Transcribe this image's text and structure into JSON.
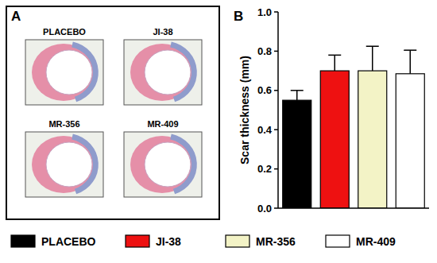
{
  "panel_a": {
    "label": "A",
    "images": [
      "PLACEBO",
      "JI-38",
      "MR-356",
      "MR-409"
    ]
  },
  "panel_b": {
    "label": "B"
  },
  "chart_data": {
    "type": "bar",
    "y_label": "Scar thickness (mm)",
    "categories": [
      "PLACEBO",
      "JI-38",
      "MR-356",
      "MR-409"
    ],
    "values": [
      0.55,
      0.7,
      0.7,
      0.685
    ],
    "errors": [
      0.05,
      0.08,
      0.125,
      0.12
    ],
    "colors": [
      "#000000",
      "#ee1111",
      "#f3f3c6",
      "#ffffff"
    ],
    "ylim": [
      0,
      1
    ],
    "yticks": [
      {
        "value": 0,
        "label": "0.0"
      },
      0.2,
      0.4,
      0.6,
      0.8,
      {
        "value": 1,
        "label": "1.0"
      }
    ],
    "grid": false,
    "legend": "bottom"
  }
}
